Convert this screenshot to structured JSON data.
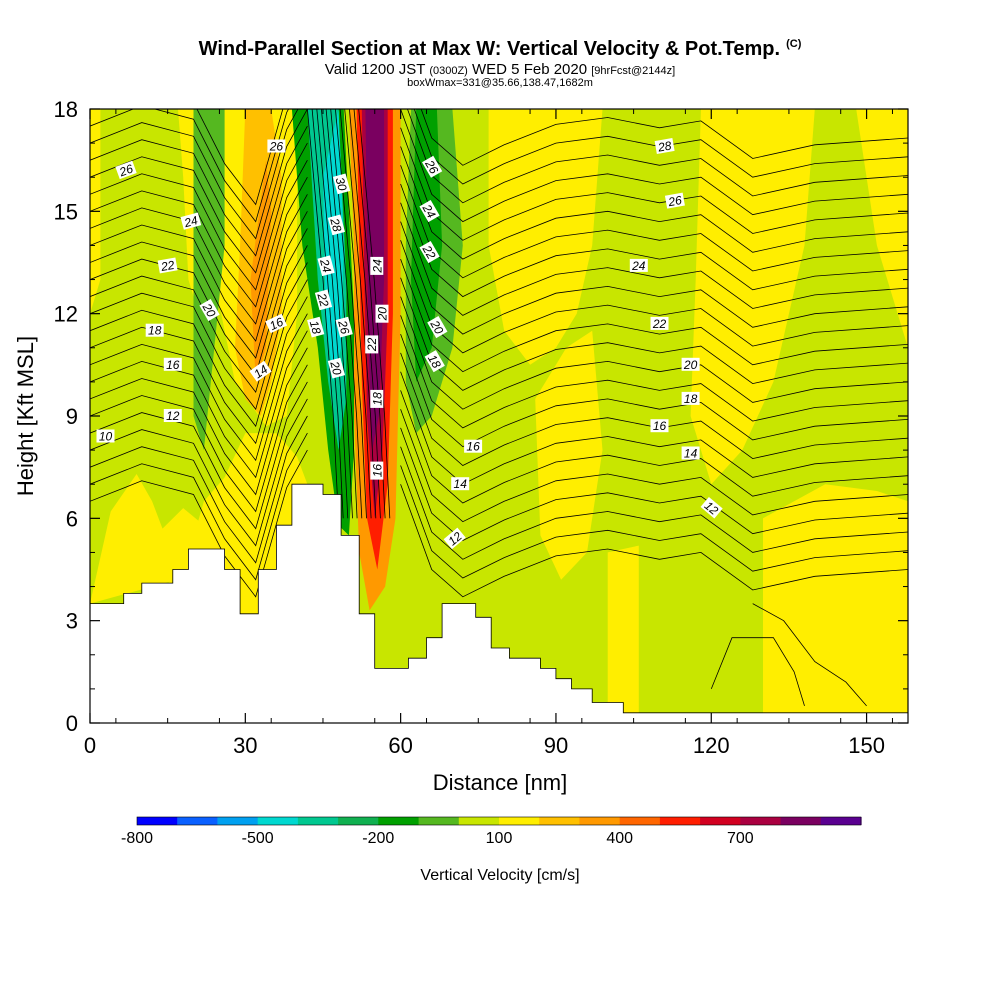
{
  "title": {
    "main": "Wind-Parallel Section at Max W: Vertical Velocity & Pot.Temp.",
    "main_suffix": "(C)",
    "sub_prefix": "Valid 1200 JST",
    "sub_zulu": "(0300Z)",
    "sub_date": "WED 5 Feb 2020",
    "sub_fcst": "[9hrFcst@2144z]",
    "sub2": "boxWmax=331@35.66,138.47,1682m"
  },
  "chart_data": {
    "type": "heatmap",
    "xlabel": "Distance [nm]",
    "ylabel": "Height [Kft MSL]",
    "xlim": [
      0,
      158
    ],
    "ylim": [
      0,
      18
    ],
    "x_ticks": [
      "0",
      "30",
      "60",
      "90",
      "120",
      "150"
    ],
    "y_ticks": [
      "0",
      "3",
      "6",
      "9",
      "12",
      "15",
      "18"
    ],
    "colorbar": {
      "title": "Vertical Velocity [cm/s]",
      "labels": [
        "-800",
        "-500",
        "-200",
        "100",
        "400",
        "700"
      ],
      "colors": [
        "#0000ff",
        "#0a60ff",
        "#00a0f0",
        "#00d8d0",
        "#00c890",
        "#10b050",
        "#00a000",
        "#55b820",
        "#c8e600",
        "#ffee00",
        "#ffc000",
        "#ff9900",
        "#ff6600",
        "#ff1e00",
        "#d20020",
        "#aa0040",
        "#7a0060",
        "#5a0090"
      ]
    },
    "shaded_regions": [
      {
        "name": "updraft-core",
        "value": 700,
        "x": 55.5,
        "y_from": 3.5,
        "y_to": 18
      },
      {
        "name": "downdraft-core",
        "value": -500,
        "x": 49,
        "y_from": 5.5,
        "y_to": 18
      },
      {
        "name": "lee-downdraft",
        "value": -200,
        "x": 66,
        "y_from": 7,
        "y_to": 18
      },
      {
        "name": "upstream-updraft",
        "value": 200,
        "x": 35,
        "y_from": 8,
        "y_to": 18
      }
    ],
    "terrain": [
      [
        0,
        3.5
      ],
      [
        6.5,
        3.5
      ],
      [
        6.5,
        3.8
      ],
      [
        10,
        3.8
      ],
      [
        10,
        4.1
      ],
      [
        16,
        4.1
      ],
      [
        16,
        4.5
      ],
      [
        19,
        4.5
      ],
      [
        19,
        5.1
      ],
      [
        26,
        5.1
      ],
      [
        26,
        4.5
      ],
      [
        29,
        4.5
      ],
      [
        29,
        3.2
      ],
      [
        32.5,
        3.2
      ],
      [
        32.5,
        4.5
      ],
      [
        36,
        4.5
      ],
      [
        36,
        5.8
      ],
      [
        39,
        5.8
      ],
      [
        39,
        7.0
      ],
      [
        45,
        7.0
      ],
      [
        45,
        6.7
      ],
      [
        48.5,
        6.7
      ],
      [
        48.5,
        5.5
      ],
      [
        52,
        5.5
      ],
      [
        52,
        3.2
      ],
      [
        55,
        3.2
      ],
      [
        55,
        1.6
      ],
      [
        61.5,
        1.6
      ],
      [
        61.5,
        1.9
      ],
      [
        65,
        1.9
      ],
      [
        65,
        2.5
      ],
      [
        68,
        2.5
      ],
      [
        68,
        3.5
      ],
      [
        74.5,
        3.5
      ],
      [
        74.5,
        3.1
      ],
      [
        77.5,
        3.1
      ],
      [
        77.5,
        2.2
      ],
      [
        81,
        2.2
      ],
      [
        81,
        1.9
      ],
      [
        87,
        1.9
      ],
      [
        87,
        1.6
      ],
      [
        90,
        1.6
      ],
      [
        90,
        1.3
      ],
      [
        93,
        1.3
      ],
      [
        93,
        1.0
      ],
      [
        97,
        1.0
      ],
      [
        97,
        0.6
      ],
      [
        103,
        0.6
      ],
      [
        103,
        0.3
      ],
      [
        158,
        0.3
      ]
    ],
    "isotherm_labels": [
      {
        "text": "26",
        "x": 7,
        "y": 16.2,
        "rot": -20
      },
      {
        "text": "24",
        "x": 19.5,
        "y": 14.7,
        "rot": -15
      },
      {
        "text": "22",
        "x": 15,
        "y": 13.4,
        "rot": -10
      },
      {
        "text": "20",
        "x": 23,
        "y": 12.1,
        "rot": 60
      },
      {
        "text": "18",
        "x": 12.5,
        "y": 11.5,
        "rot": 0
      },
      {
        "text": "16",
        "x": 16,
        "y": 10.5,
        "rot": 0
      },
      {
        "text": "12",
        "x": 16,
        "y": 9.0,
        "rot": 0
      },
      {
        "text": "10",
        "x": 3,
        "y": 8.4,
        "rot": 0
      },
      {
        "text": "26",
        "x": 36,
        "y": 16.9,
        "rot": 0
      },
      {
        "text": "16",
        "x": 36,
        "y": 11.7,
        "rot": -25
      },
      {
        "text": "14",
        "x": 33,
        "y": 10.3,
        "rot": -35
      },
      {
        "text": "30",
        "x": 48.5,
        "y": 15.8,
        "rot": 75
      },
      {
        "text": "28",
        "x": 47.5,
        "y": 14.6,
        "rot": 75
      },
      {
        "text": "24",
        "x": 45.5,
        "y": 13.4,
        "rot": 75
      },
      {
        "text": "22",
        "x": 45,
        "y": 12.4,
        "rot": 75
      },
      {
        "text": "18",
        "x": 43.5,
        "y": 11.6,
        "rot": 75
      },
      {
        "text": "26",
        "x": 49,
        "y": 11.6,
        "rot": 75
      },
      {
        "text": "20",
        "x": 47.5,
        "y": 10.4,
        "rot": 75
      },
      {
        "text": "24",
        "x": 55.5,
        "y": 13.4,
        "rot": -90
      },
      {
        "text": "20",
        "x": 56.5,
        "y": 12.0,
        "rot": -90
      },
      {
        "text": "22",
        "x": 54.5,
        "y": 11.1,
        "rot": -90
      },
      {
        "text": "18",
        "x": 55.5,
        "y": 9.5,
        "rot": -90
      },
      {
        "text": "16",
        "x": 55.5,
        "y": 7.4,
        "rot": -90
      },
      {
        "text": "26",
        "x": 66,
        "y": 16.3,
        "rot": 60
      },
      {
        "text": "24",
        "x": 65.5,
        "y": 15.0,
        "rot": 60
      },
      {
        "text": "22",
        "x": 65.5,
        "y": 13.8,
        "rot": 60
      },
      {
        "text": "20",
        "x": 67,
        "y": 11.6,
        "rot": 60
      },
      {
        "text": "18",
        "x": 66.5,
        "y": 10.6,
        "rot": 60
      },
      {
        "text": "16",
        "x": 74,
        "y": 8.1,
        "rot": 0
      },
      {
        "text": "14",
        "x": 71.5,
        "y": 7.0,
        "rot": 0
      },
      {
        "text": "12",
        "x": 70.5,
        "y": 5.4,
        "rot": -40
      },
      {
        "text": "28",
        "x": 111,
        "y": 16.9,
        "rot": -10
      },
      {
        "text": "26",
        "x": 113,
        "y": 15.3,
        "rot": -10
      },
      {
        "text": "24",
        "x": 106,
        "y": 13.4,
        "rot": 0
      },
      {
        "text": "22",
        "x": 110,
        "y": 11.7,
        "rot": 0
      },
      {
        "text": "20",
        "x": 116,
        "y": 10.5,
        "rot": 0
      },
      {
        "text": "18",
        "x": 116,
        "y": 9.5,
        "rot": 0
      },
      {
        "text": "16",
        "x": 110,
        "y": 8.7,
        "rot": 0
      },
      {
        "text": "14",
        "x": 116,
        "y": 7.9,
        "rot": 0
      },
      {
        "text": "12",
        "x": 120,
        "y": 6.3,
        "rot": 40
      }
    ]
  }
}
